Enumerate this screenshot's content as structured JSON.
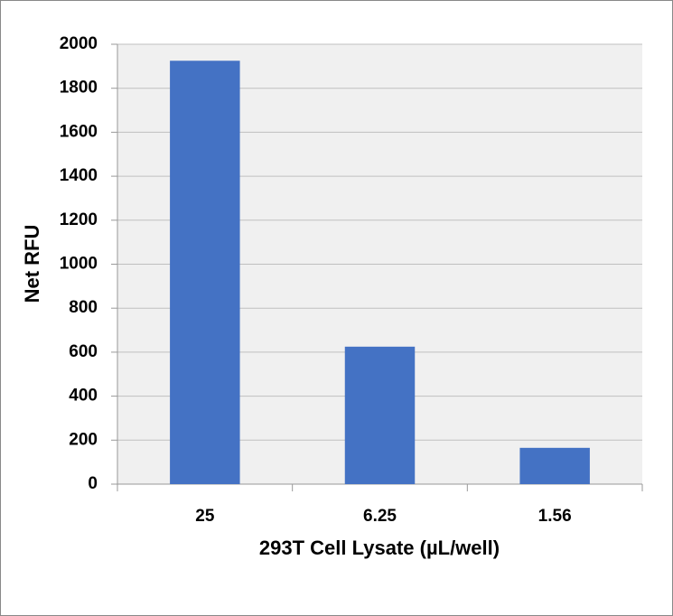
{
  "chart_data": {
    "type": "bar",
    "x_label": "293T Cell Lysate (µL/well)",
    "y_label": "Net RFU",
    "categories": [
      "25",
      "6.25",
      "1.56"
    ],
    "values": [
      1925,
      625,
      165
    ],
    "color": "#4472c4",
    "ylim": [
      0,
      2000
    ],
    "yticks": [
      0,
      200,
      400,
      600,
      800,
      1000,
      1200,
      1400,
      1600,
      1800,
      2000
    ],
    "grid": true
  }
}
